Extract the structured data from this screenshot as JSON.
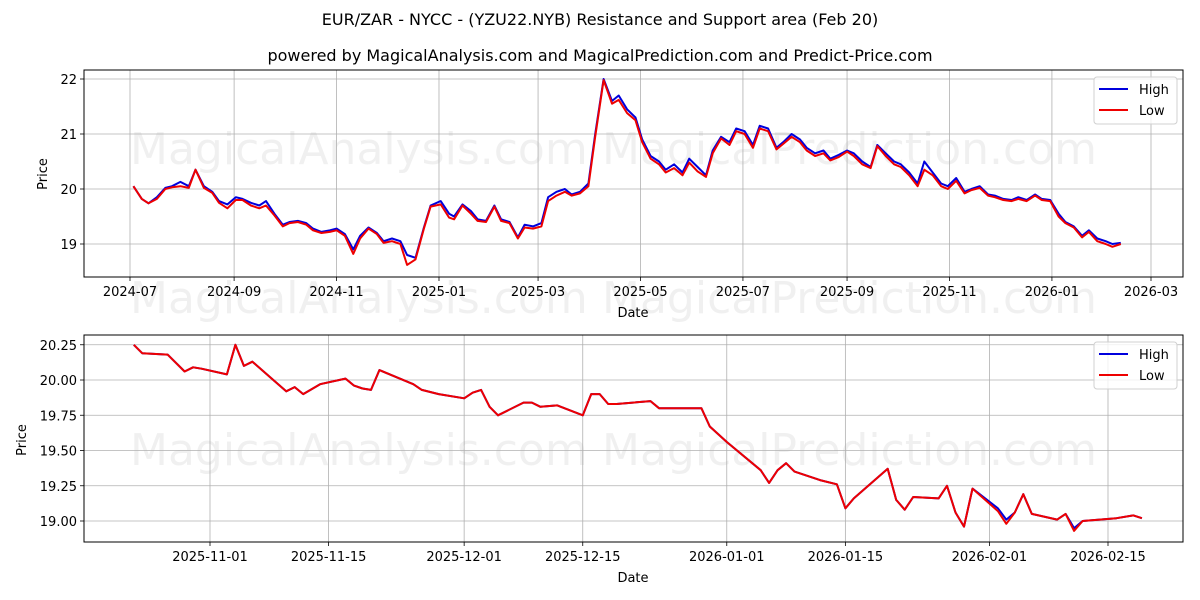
{
  "title": "EUR/ZAR - NYCC -  (YZU22.NYB) Resistance and Support area (Feb 20)",
  "subtitle": "powered by MagicalAnalysis.com and MagicalPrediction.com and Predict-Price.com",
  "watermarks": [
    "MagicalAnalysis.com",
    "MagicalPrediction.com"
  ],
  "colors": {
    "high": "#0000dd",
    "low": "#ee0000",
    "grid": "#b0b0b0"
  },
  "chart_data": [
    {
      "type": "line",
      "title": "Top panel: full history",
      "xlabel": "Date",
      "ylabel": "Price",
      "ylim": [
        18.4,
        22.15
      ],
      "yticks": [
        19,
        20,
        21,
        22
      ],
      "xticks": [
        "2024-07",
        "2024-09",
        "2024-11",
        "2025-01",
        "2025-03",
        "2025-05",
        "2025-07",
        "2025-09",
        "2025-11",
        "2026-01",
        "2026-03"
      ],
      "grid": true,
      "legend": {
        "position": "upper right",
        "entries": [
          "High",
          "Low"
        ]
      },
      "x": [
        "2024-07-03",
        "2024-07-08",
        "2024-07-12",
        "2024-07-17",
        "2024-07-22",
        "2024-07-26",
        "2024-07-31",
        "2024-08-05",
        "2024-08-09",
        "2024-08-14",
        "2024-08-19",
        "2024-08-23",
        "2024-08-28",
        "2024-09-02",
        "2024-09-06",
        "2024-09-11",
        "2024-09-16",
        "2024-09-20",
        "2024-09-25",
        "2024-09-30",
        "2024-10-04",
        "2024-10-09",
        "2024-10-14",
        "2024-10-18",
        "2024-10-23",
        "2024-10-28",
        "2024-11-01",
        "2024-11-06",
        "2024-11-11",
        "2024-11-15",
        "2024-11-20",
        "2024-11-25",
        "2024-11-29",
        "2024-12-04",
        "2024-12-09",
        "2024-12-13",
        "2024-12-18",
        "2024-12-23",
        "2024-12-27",
        "2025-01-02",
        "2025-01-07",
        "2025-01-10",
        "2025-01-15",
        "2025-01-20",
        "2025-01-24",
        "2025-01-29",
        "2025-02-03",
        "2025-02-07",
        "2025-02-12",
        "2025-02-17",
        "2025-02-21",
        "2025-02-26",
        "2025-03-03",
        "2025-03-07",
        "2025-03-12",
        "2025-03-17",
        "2025-03-21",
        "2025-03-26",
        "2025-03-31",
        "2025-04-04",
        "2025-04-09",
        "2025-04-14",
        "2025-04-18",
        "2025-04-23",
        "2025-04-28",
        "2025-05-02",
        "2025-05-07",
        "2025-05-12",
        "2025-05-16",
        "2025-05-21",
        "2025-05-26",
        "2025-05-30",
        "2025-06-04",
        "2025-06-09",
        "2025-06-13",
        "2025-06-18",
        "2025-06-23",
        "2025-06-27",
        "2025-07-02",
        "2025-07-07",
        "2025-07-11",
        "2025-07-16",
        "2025-07-21",
        "2025-07-25",
        "2025-07-30",
        "2025-08-04",
        "2025-08-08",
        "2025-08-13",
        "2025-08-18",
        "2025-08-22",
        "2025-08-27",
        "2025-09-01",
        "2025-09-05",
        "2025-09-10",
        "2025-09-15",
        "2025-09-19",
        "2025-09-24",
        "2025-09-29",
        "2025-10-03",
        "2025-10-08",
        "2025-10-13",
        "2025-10-17",
        "2025-10-22",
        "2025-10-27",
        "2025-10-31",
        "2025-11-05",
        "2025-11-10",
        "2025-11-14",
        "2025-11-19",
        "2025-11-24",
        "2025-11-28",
        "2025-12-03",
        "2025-12-08",
        "2025-12-12",
        "2025-12-17",
        "2025-12-22",
        "2025-12-26",
        "2025-12-31",
        "2026-01-05",
        "2026-01-09",
        "2026-01-14",
        "2026-01-19",
        "2026-01-23",
        "2026-01-28",
        "2026-02-02",
        "2026-02-06",
        "2026-02-11",
        "2026-02-16",
        "2026-02-18"
      ],
      "series": [
        {
          "name": "High",
          "values": [
            20.05,
            19.82,
            19.74,
            19.85,
            20.02,
            20.05,
            20.13,
            20.05,
            20.35,
            20.05,
            19.95,
            19.78,
            19.72,
            19.85,
            19.82,
            19.75,
            19.7,
            19.78,
            19.55,
            19.35,
            19.4,
            19.42,
            19.38,
            19.28,
            19.22,
            19.25,
            19.28,
            19.18,
            18.9,
            19.15,
            19.3,
            19.2,
            19.05,
            19.1,
            19.05,
            18.8,
            18.75,
            19.3,
            19.7,
            19.78,
            19.55,
            19.5,
            19.72,
            19.6,
            19.45,
            19.42,
            19.7,
            19.45,
            19.4,
            19.12,
            19.35,
            19.32,
            19.38,
            19.85,
            19.95,
            20.0,
            19.9,
            19.95,
            20.1,
            21.0,
            22.0,
            21.6,
            21.7,
            21.45,
            21.3,
            20.9,
            20.6,
            20.5,
            20.35,
            20.45,
            20.3,
            20.55,
            20.4,
            20.25,
            20.7,
            20.95,
            20.85,
            21.1,
            21.05,
            20.8,
            21.15,
            21.1,
            20.75,
            20.85,
            21.0,
            20.9,
            20.75,
            20.65,
            20.7,
            20.55,
            20.62,
            20.7,
            20.65,
            20.5,
            20.4,
            20.8,
            20.65,
            20.5,
            20.45,
            20.3,
            20.1,
            20.5,
            20.3,
            20.1,
            20.05,
            20.2,
            19.95,
            20.0,
            20.05,
            19.9,
            19.88,
            19.82,
            19.8,
            19.85,
            19.8,
            19.9,
            19.82,
            19.8,
            19.55,
            19.4,
            19.32,
            19.15,
            19.25,
            19.1,
            19.05,
            19.0,
            19.02
          ]
        },
        {
          "name": "Low",
          "values": [
            20.05,
            19.82,
            19.74,
            19.82,
            20.0,
            20.03,
            20.05,
            20.02,
            20.35,
            20.02,
            19.93,
            19.75,
            19.65,
            19.8,
            19.8,
            19.7,
            19.65,
            19.7,
            19.52,
            19.32,
            19.38,
            19.4,
            19.35,
            19.25,
            19.2,
            19.22,
            19.25,
            19.15,
            18.82,
            19.1,
            19.28,
            19.18,
            19.02,
            19.05,
            19.0,
            18.62,
            18.72,
            19.28,
            19.68,
            19.72,
            19.48,
            19.45,
            19.7,
            19.55,
            19.42,
            19.4,
            19.68,
            19.42,
            19.38,
            19.1,
            19.3,
            19.28,
            19.32,
            19.78,
            19.88,
            19.95,
            19.88,
            19.92,
            20.05,
            20.95,
            21.98,
            21.55,
            21.62,
            21.38,
            21.25,
            20.85,
            20.55,
            20.45,
            20.3,
            20.38,
            20.25,
            20.48,
            20.32,
            20.22,
            20.65,
            20.92,
            20.8,
            21.05,
            21.0,
            20.75,
            21.1,
            21.05,
            20.72,
            20.82,
            20.95,
            20.85,
            20.7,
            20.6,
            20.65,
            20.52,
            20.58,
            20.68,
            20.6,
            20.45,
            20.38,
            20.78,
            20.6,
            20.45,
            20.4,
            20.25,
            20.05,
            20.35,
            20.25,
            20.05,
            20.0,
            20.15,
            19.92,
            19.98,
            20.02,
            19.88,
            19.85,
            19.8,
            19.78,
            19.82,
            19.78,
            19.88,
            19.8,
            19.78,
            19.5,
            19.38,
            19.3,
            19.12,
            19.22,
            19.05,
            19.0,
            18.95,
            19.0
          ]
        }
      ]
    },
    {
      "type": "line",
      "title": "Bottom panel: recent period",
      "xlabel": "Date",
      "ylabel": "Price",
      "ylim": [
        18.86,
        20.31
      ],
      "yticks": [
        "20.25",
        "20.00",
        "19.75",
        "19.50",
        "19.25",
        "19.00"
      ],
      "xticks": [
        "2025-11-01",
        "2025-11-15",
        "2025-12-01",
        "2025-12-15",
        "2026-01-01",
        "2026-01-15",
        "2026-02-01",
        "2026-02-15"
      ],
      "grid": true,
      "legend": {
        "position": "upper right",
        "entries": [
          "High",
          "Low"
        ]
      },
      "x": [
        "2025-10-23",
        "2025-10-24",
        "2025-10-27",
        "2025-10-29",
        "2025-10-30",
        "2025-10-31",
        "2025-11-03",
        "2025-11-04",
        "2025-11-05",
        "2025-11-06",
        "2025-11-10",
        "2025-11-11",
        "2025-11-12",
        "2025-11-14",
        "2025-11-17",
        "2025-11-18",
        "2025-11-19",
        "2025-11-20",
        "2025-11-21",
        "2025-11-25",
        "2025-11-26",
        "2025-11-28",
        "2025-12-01",
        "2025-12-02",
        "2025-12-03",
        "2025-12-04",
        "2025-12-05",
        "2025-12-08",
        "2025-12-09",
        "2025-12-10",
        "2025-12-12",
        "2025-12-15",
        "2025-12-16",
        "2025-12-17",
        "2025-12-18",
        "2025-12-19",
        "2025-12-23",
        "2025-12-24",
        "2025-12-29",
        "2025-12-30",
        "2026-01-01",
        "2026-01-05",
        "2026-01-06",
        "2026-01-07",
        "2026-01-08",
        "2026-01-09",
        "2026-01-12",
        "2026-01-14",
        "2026-01-15",
        "2026-01-16",
        "2026-01-20",
        "2026-01-21",
        "2026-01-22",
        "2026-01-23",
        "2026-01-26",
        "2026-01-27",
        "2026-01-28",
        "2026-01-29",
        "2026-01-30",
        "2026-02-02",
        "2026-02-03",
        "2026-02-04",
        "2026-02-05",
        "2026-02-06",
        "2026-02-09",
        "2026-02-10",
        "2026-02-11",
        "2026-02-12",
        "2026-02-16",
        "2026-02-18",
        "2026-02-19"
      ],
      "series": [
        {
          "name": "High",
          "values": [
            20.25,
            20.19,
            20.18,
            20.06,
            20.09,
            20.08,
            20.04,
            20.25,
            20.1,
            20.13,
            19.92,
            19.95,
            19.9,
            19.97,
            20.01,
            19.96,
            19.94,
            19.93,
            20.07,
            19.97,
            19.93,
            19.9,
            19.87,
            19.91,
            19.93,
            19.81,
            19.75,
            19.84,
            19.84,
            19.81,
            19.82,
            19.75,
            19.9,
            19.9,
            19.83,
            19.83,
            19.85,
            19.8,
            19.8,
            19.67,
            19.56,
            19.36,
            19.27,
            19.36,
            19.41,
            19.35,
            19.29,
            19.26,
            19.09,
            19.16,
            19.37,
            19.15,
            19.08,
            19.17,
            19.16,
            19.25,
            19.06,
            18.96,
            19.23,
            19.09,
            19.01,
            19.06,
            19.19,
            19.05,
            19.01,
            19.05,
            18.95,
            19.0,
            19.02,
            19.04,
            19.02
          ]
        },
        {
          "name": "Low",
          "values": [
            20.25,
            20.19,
            20.18,
            20.06,
            20.09,
            20.08,
            20.04,
            20.25,
            20.1,
            20.13,
            19.92,
            19.95,
            19.9,
            19.97,
            20.01,
            19.96,
            19.94,
            19.93,
            20.07,
            19.97,
            19.93,
            19.9,
            19.87,
            19.91,
            19.93,
            19.81,
            19.75,
            19.84,
            19.84,
            19.81,
            19.82,
            19.75,
            19.9,
            19.9,
            19.83,
            19.83,
            19.85,
            19.8,
            19.8,
            19.67,
            19.56,
            19.36,
            19.27,
            19.36,
            19.41,
            19.35,
            19.29,
            19.26,
            19.09,
            19.16,
            19.37,
            19.15,
            19.08,
            19.17,
            19.16,
            19.25,
            19.06,
            18.96,
            19.23,
            19.07,
            18.98,
            19.06,
            19.19,
            19.05,
            19.01,
            19.05,
            18.93,
            19.0,
            19.02,
            19.04,
            19.02
          ]
        }
      ]
    }
  ]
}
